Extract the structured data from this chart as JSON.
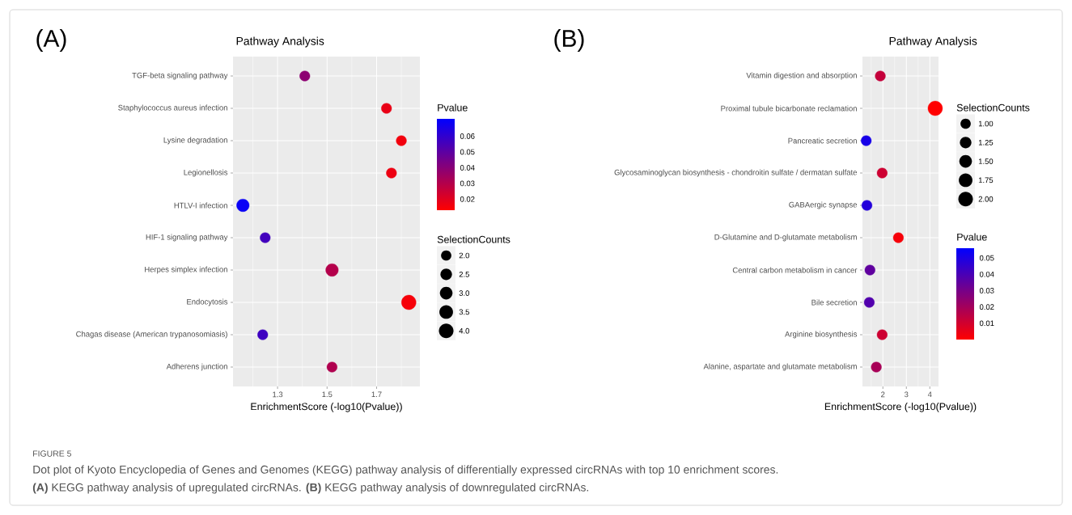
{
  "chart_data": [
    {
      "type": "bubble",
      "orientation": "horizontal",
      "title": "Pathway Analysis",
      "xlabel": "EnrichmentScore (-log10(Pvalue))",
      "clabel": "Pvalue",
      "legend_title": "SelectionCounts",
      "annotations": [
        "(A)",
        "FIGURE 5",
        "Dot plot of Kyoto Encyclopedia of Genes and Genomes (KEGG) pathway analysis of differentially expressed circRNAs with top 10 enrichment scores.",
        "**(A)** KEGG pathway analysis of upregulated circRNAs. **(B)** KEGG pathway analysis of downregulated circRNAs."
      ],
      "categories": [
        "TGF-beta signaling pathway",
        "Staphylococcus aureus infection",
        "Lysine degradation",
        "Legionellosis",
        "HTLV-I infection",
        "HIF-1 signaling pathway",
        "Herpes simplex infection",
        "Endocytosis",
        "Chagas disease (American trypanosomiasis)",
        "Adherens junction"
      ],
      "values": [
        1.41,
        1.74,
        1.8,
        1.76,
        1.16,
        1.25,
        1.52,
        1.83,
        1.24,
        1.52
      ],
      "sizes": [
        2,
        2,
        2,
        2,
        3,
        2,
        3,
        4,
        2,
        2
      ],
      "cvalues": [
        0.039,
        0.018,
        0.016,
        0.017,
        0.069,
        0.056,
        0.03,
        0.015,
        0.057,
        0.031
      ],
      "size_legend": [
        {
          "value": 2,
          "label": "2.0"
        },
        {
          "value": 2.5,
          "label": "2.5"
        },
        {
          "value": 3,
          "label": "3.0"
        },
        {
          "value": 3.5,
          "label": "3.5"
        },
        {
          "value": 4,
          "label": "4.0"
        }
      ],
      "xlim": [
        1.12,
        1.875
      ],
      "xticks": [
        {
          "value": 1.2,
          "label": null
        },
        1.3,
        {
          "value": 1.4,
          "label": null
        },
        1.5,
        {
          "value": 1.6,
          "label": null
        },
        1.7,
        {
          "value": 1.8,
          "label": null
        }
      ],
      "clim": [
        0.013,
        0.071
      ],
      "cticks": [
        0.02,
        0.03,
        0.04,
        0.05,
        0.06
      ],
      "grid": true
    },
    {
      "type": "bubble",
      "orientation": "horizontal",
      "title": "Pathway Analysis",
      "xlabel": "EnrichmentScore (-log10(Pvalue))",
      "clabel": "Pvalue",
      "legend_title": "SelectionCounts",
      "annotations": [
        "(B)"
      ],
      "categories": [
        "Vitamin digestion and absorption",
        "Proximal tubule bicarbonate reclamation",
        "Pancreatic secretion",
        "Glycosaminoglycan biosynthesis - chondroitin sulfate / dermatan sulfate",
        "GABAergic synapse",
        "D-Glutamine and D-glutamate metabolism",
        "Central carbon metabolism in cancer",
        "Bile secretion",
        "Arginine biosynthesis",
        "Alanine, aspartate and glutamate metabolism"
      ],
      "values": [
        1.89,
        4.23,
        1.29,
        1.97,
        1.32,
        2.66,
        1.45,
        1.42,
        1.97,
        1.72
      ],
      "sizes": [
        1,
        2,
        1,
        1,
        1,
        1,
        1,
        1,
        1,
        1
      ],
      "cvalues": [
        0.013,
        0.0001,
        0.051,
        0.011,
        0.048,
        0.002,
        0.035,
        0.038,
        0.011,
        0.019
      ],
      "size_legend": [
        {
          "value": 1,
          "label": "1.00"
        },
        {
          "value": 1.25,
          "label": "1.25"
        },
        {
          "value": 1.5,
          "label": "1.50"
        },
        {
          "value": 1.75,
          "label": "1.75"
        },
        {
          "value": 2,
          "label": "2.00"
        }
      ],
      "xlim": [
        1.13,
        4.37
      ],
      "xticks": [
        {
          "value": 1.5,
          "label": null
        },
        2,
        {
          "value": 2.5,
          "label": null
        },
        3,
        {
          "value": 3.5,
          "label": null
        },
        4
      ],
      "clim": [
        0,
        0.056
      ],
      "cticks": [
        0.01,
        0.02,
        0.03,
        0.04,
        0.05
      ],
      "grid": true
    }
  ]
}
